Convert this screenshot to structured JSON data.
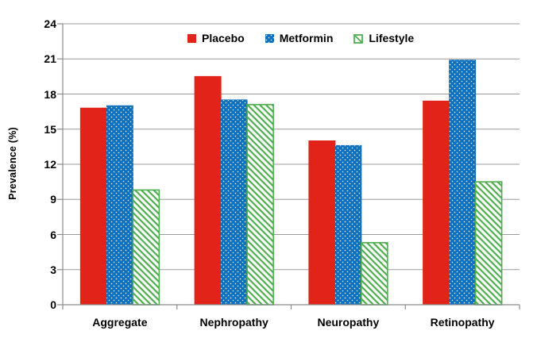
{
  "chart_data": {
    "type": "bar",
    "title": "",
    "xlabel": "",
    "ylabel": "Prevalence (%)",
    "categories": [
      "Aggregate",
      "Nephropathy",
      "Neuropathy",
      "Retinopathy"
    ],
    "series": [
      {
        "name": "Placebo",
        "pattern": "solid",
        "color": "#e2231a",
        "values": [
          16.8,
          19.5,
          14.0,
          17.4
        ]
      },
      {
        "name": "Metformin",
        "pattern": "dots",
        "color": "#0c70bf",
        "values": [
          17.0,
          17.5,
          13.6,
          20.9
        ]
      },
      {
        "name": "Lifestyle",
        "pattern": "hatch",
        "color": "#4fae50",
        "values": [
          9.8,
          17.1,
          5.3,
          10.5
        ]
      }
    ],
    "ylim": [
      0,
      24
    ],
    "yticks": [
      0,
      3,
      6,
      9,
      12,
      15,
      18,
      21,
      24
    ],
    "grid": "horizontal",
    "legend_position": "top-center",
    "colors": {
      "gridline": "#9b9b9b",
      "axis": "#8c8c8c",
      "text": "#000000",
      "background": "#ffffff"
    }
  }
}
